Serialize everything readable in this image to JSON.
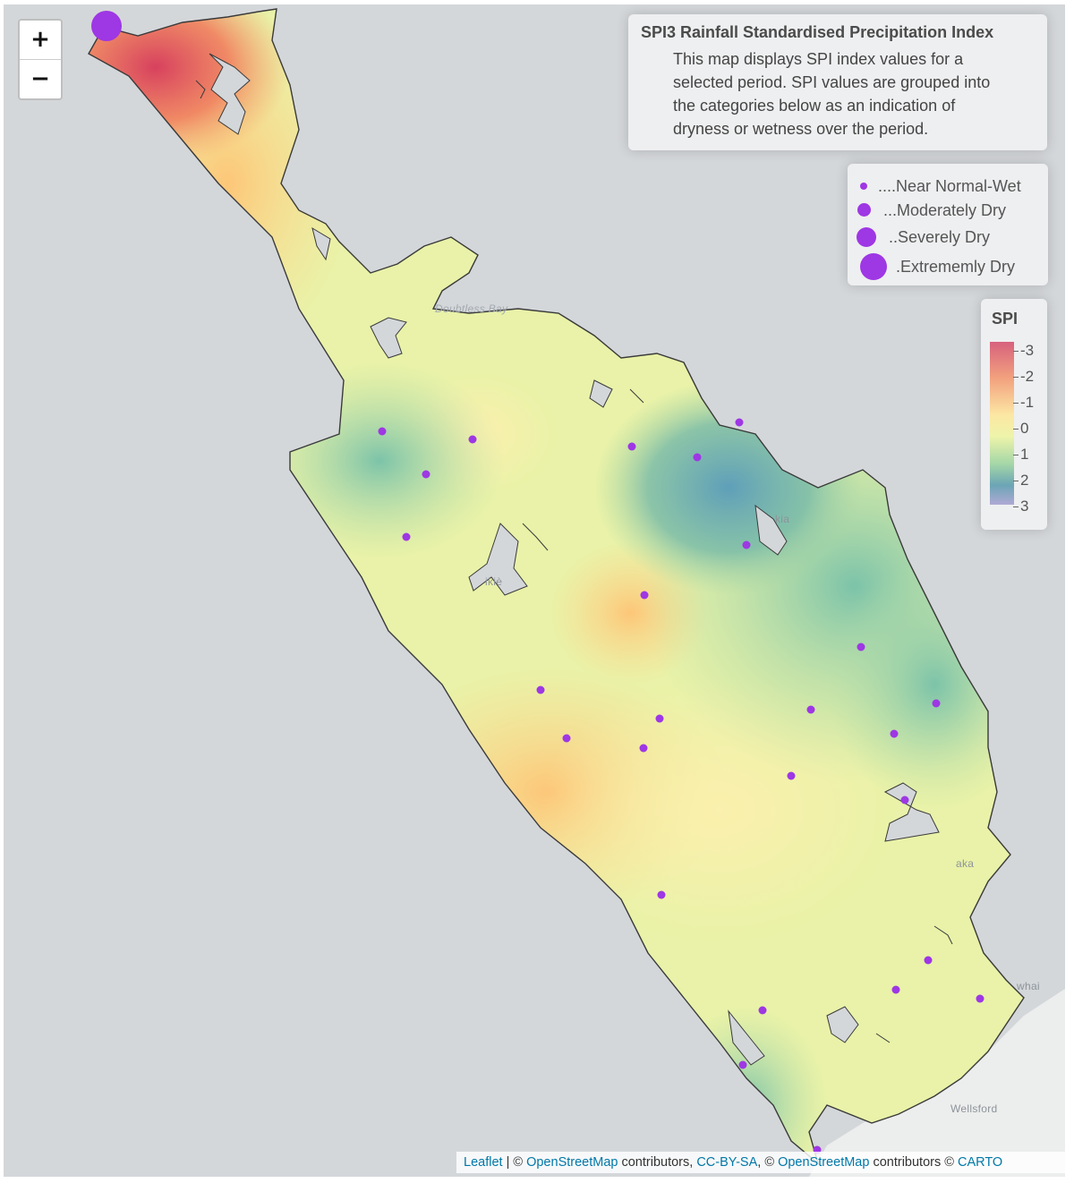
{
  "zoom": {
    "in_label": "+",
    "out_label": "−"
  },
  "info": {
    "title": "SPI3 Rainfall Standardised Precipitation Index",
    "description": "This map displays SPI index values for a selected period. SPI values are grouped into the categories below as an indication of dryness or wetness over the period."
  },
  "size_legend": {
    "items": [
      {
        "label": "....Near Normal-Wet"
      },
      {
        "label": "...Moderately Dry"
      },
      {
        "label": "..Severely Dry"
      },
      {
        "label": ".Extrememly Dry"
      }
    ]
  },
  "spi_legend": {
    "title": "SPI",
    "ticks": [
      "-3",
      "-2",
      "-1",
      "0",
      "1",
      "2",
      "3"
    ],
    "colors": [
      "#d7617d",
      "#f2a07e",
      "#fce7a4",
      "#eef4aa",
      "#a4d6a7",
      "#6ba5b5",
      "#b0a9d5"
    ]
  },
  "place_labels": [
    "Doubtless Bay",
    "Wellsford",
    "whai",
    "aka",
    "kia",
    "ikiè"
  ],
  "station_color": "#9e37e4",
  "stations": [
    {
      "category": "Extrememly Dry"
    },
    {
      "category": "Near Normal-Wet"
    },
    {
      "category": "Near Normal-Wet"
    },
    {
      "category": "Near Normal-Wet"
    },
    {
      "category": "Near Normal-Wet"
    },
    {
      "category": "Near Normal-Wet"
    },
    {
      "category": "Near Normal-Wet"
    },
    {
      "category": "Near Normal-Wet"
    },
    {
      "category": "Near Normal-Wet"
    },
    {
      "category": "Near Normal-Wet"
    },
    {
      "category": "Near Normal-Wet"
    },
    {
      "category": "Near Normal-Wet"
    },
    {
      "category": "Near Normal-Wet"
    },
    {
      "category": "Near Normal-Wet"
    },
    {
      "category": "Near Normal-Wet"
    },
    {
      "category": "Near Normal-Wet"
    },
    {
      "category": "Near Normal-Wet"
    },
    {
      "category": "Near Normal-Wet"
    },
    {
      "category": "Near Normal-Wet"
    },
    {
      "category": "Near Normal-Wet"
    },
    {
      "category": "Near Normal-Wet"
    },
    {
      "category": "Near Normal-Wet"
    },
    {
      "category": "Near Normal-Wet"
    },
    {
      "category": "Near Normal-Wet"
    },
    {
      "category": "Near Normal-Wet"
    },
    {
      "category": "Near Normal-Wet"
    }
  ],
  "attribution": {
    "leaflet": "Leaflet",
    "sep": " | © ",
    "osm1": "OpenStreetMap",
    "contrib1": " contributors, ",
    "ccbysa": "CC-BY-SA",
    "mid": ", © ",
    "osm2": "OpenStreetMap",
    "contrib2": " contributors © ",
    "carto": "CARTO"
  }
}
